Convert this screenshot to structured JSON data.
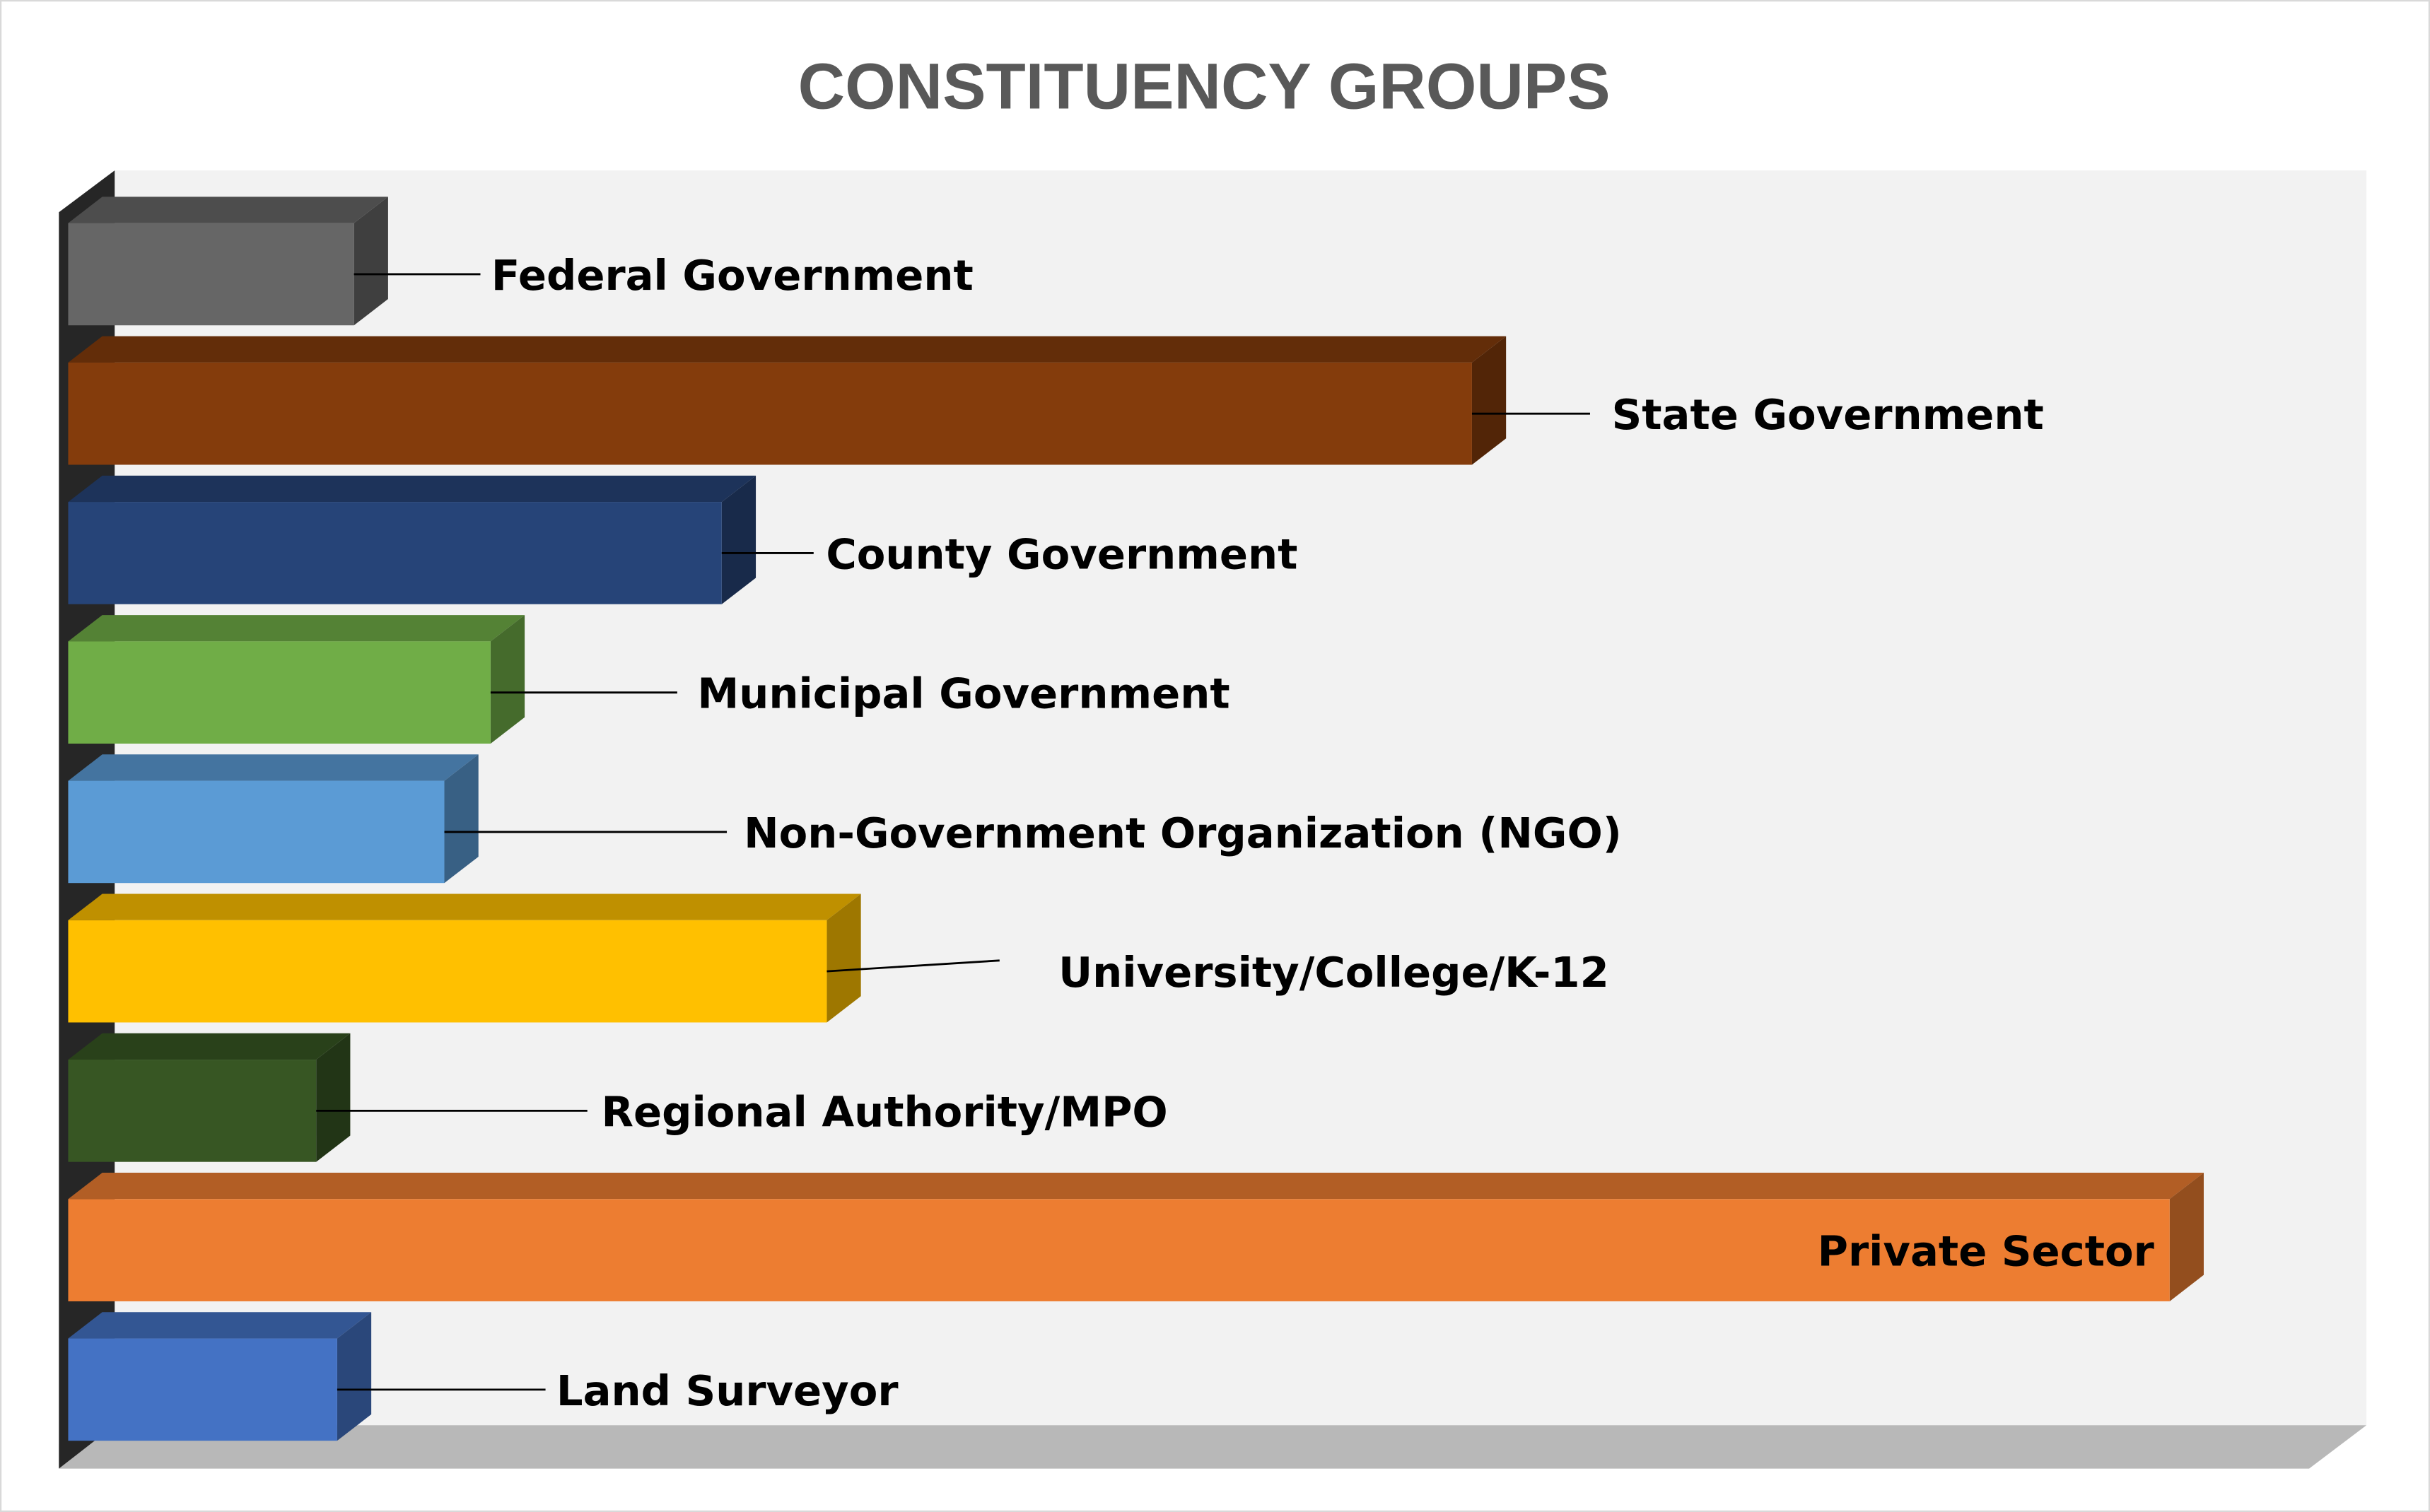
{
  "chart_data": {
    "type": "bar",
    "orientation": "horizontal",
    "style": "3d",
    "title": "CONSTITUENCY GROUPS",
    "xlabel": "",
    "ylabel": "",
    "xlim": [
      0,
      100
    ],
    "value_units": "relative length (percent of longest bar, estimated; no axis shown)",
    "grid": false,
    "legend": "none",
    "categories": [
      "Federal Government",
      "State Government",
      "County Government",
      "Municipal Government",
      "Non-Government Organization (NGO)",
      "University/College/K-12",
      "Regional Authority/MPO",
      "Private Sector",
      "Land Surveyor"
    ],
    "values": [
      13.6,
      66.8,
      31.1,
      20.1,
      17.9,
      36.1,
      11.8,
      100,
      12.8
    ],
    "colors": [
      "#666666",
      "#843C0C",
      "#264478",
      "#70AD47",
      "#5B9BD5",
      "#FFC000",
      "#375623",
      "#ED7D31",
      "#4472C4"
    ]
  }
}
